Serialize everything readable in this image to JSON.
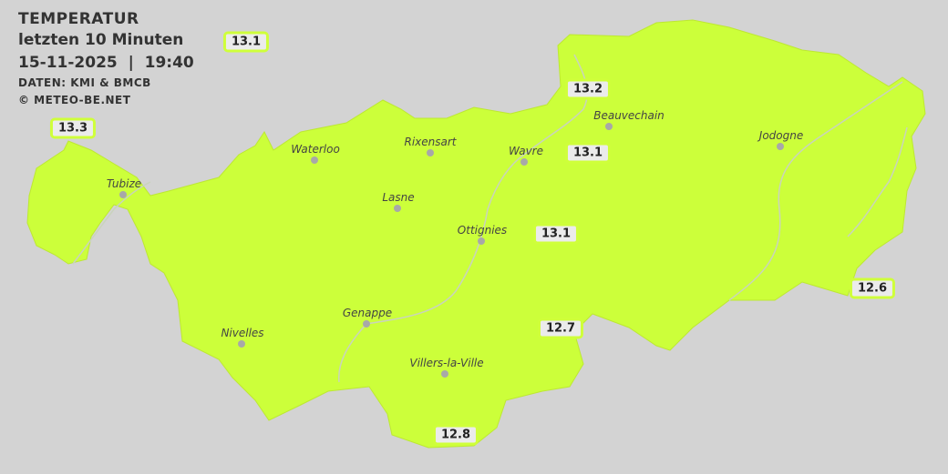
{
  "header": {
    "title": "TEMPERATUR",
    "subtitle": "letzten 10 Minuten",
    "datetime": "15-11-2025  |  19:40",
    "source": "DATEN: KMI & BMCB",
    "copyright": "© METEO-BE.NET"
  },
  "colors": {
    "background": "#d3d3d3",
    "region_fill": "#ccff3a",
    "river": "#c8d0c0",
    "label_border": "#cfff3a"
  },
  "towns": [
    {
      "name": "Waterloo"
    },
    {
      "name": "Rixensart"
    },
    {
      "name": "Wavre"
    },
    {
      "name": "Tubize"
    },
    {
      "name": "Lasne"
    },
    {
      "name": "Ottignies"
    },
    {
      "name": "Genappe"
    },
    {
      "name": "Nivelles"
    },
    {
      "name": "Villers-la-Ville"
    },
    {
      "name": "Jodogne"
    },
    {
      "name": "Beauvechain"
    }
  ],
  "temperatures": [
    "13.1",
    "13.3",
    "13.2",
    "13.1",
    "13.1",
    "12.6",
    "12.7",
    "12.8"
  ]
}
